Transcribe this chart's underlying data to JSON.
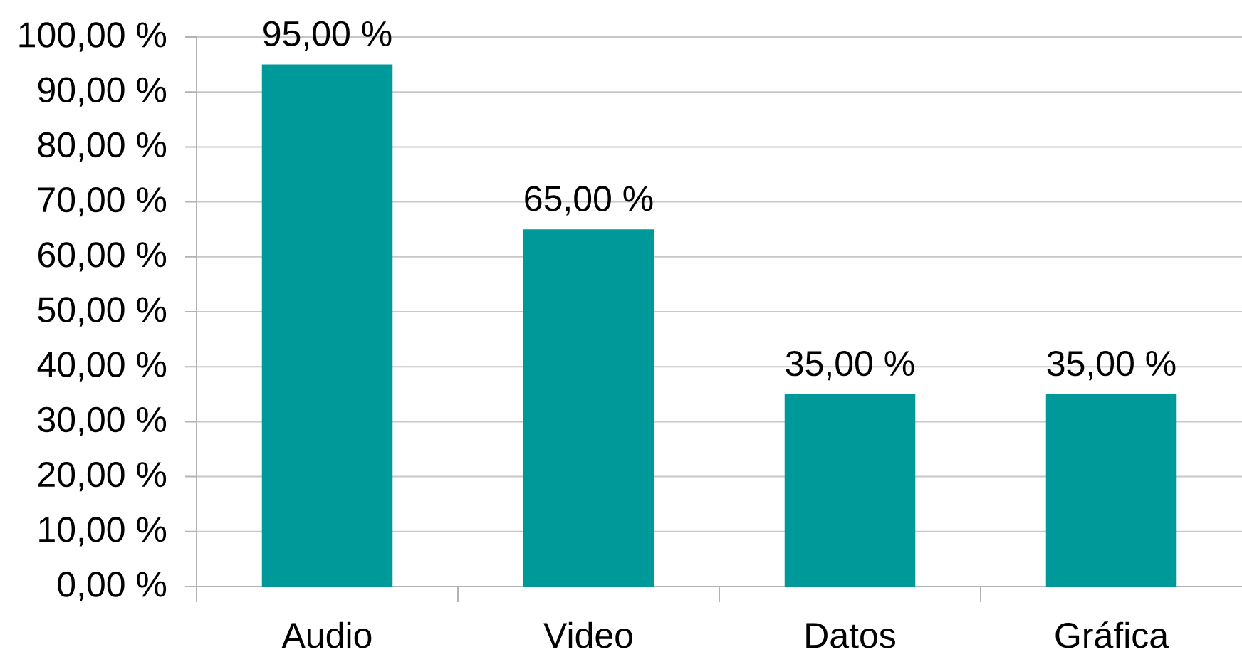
{
  "chart_data": {
    "type": "bar",
    "categories": [
      "Audio",
      "Video",
      "Datos",
      "Gráfica"
    ],
    "values": [
      95,
      65,
      35,
      35
    ],
    "color": "#009999",
    "value_labels": [
      "95,00 %",
      "65,00 %",
      "35,00 %",
      "35,00 %"
    ],
    "ylim": [
      0,
      100
    ],
    "yticks": [
      {
        "value": 0,
        "label": "0,00 %"
      },
      {
        "value": 10,
        "label": "10,00 %"
      },
      {
        "value": 20,
        "label": "20,00 %"
      },
      {
        "value": 30,
        "label": "30,00 %"
      },
      {
        "value": 40,
        "label": "40,00 %"
      },
      {
        "value": 50,
        "label": "50,00 %"
      },
      {
        "value": 60,
        "label": "60,00 %"
      },
      {
        "value": 70,
        "label": "70,00 %"
      },
      {
        "value": 80,
        "label": "80,00 %"
      },
      {
        "value": 90,
        "label": "90,00 %"
      },
      {
        "value": 100,
        "label": "100,00 %"
      }
    ],
    "grid": "y"
  }
}
